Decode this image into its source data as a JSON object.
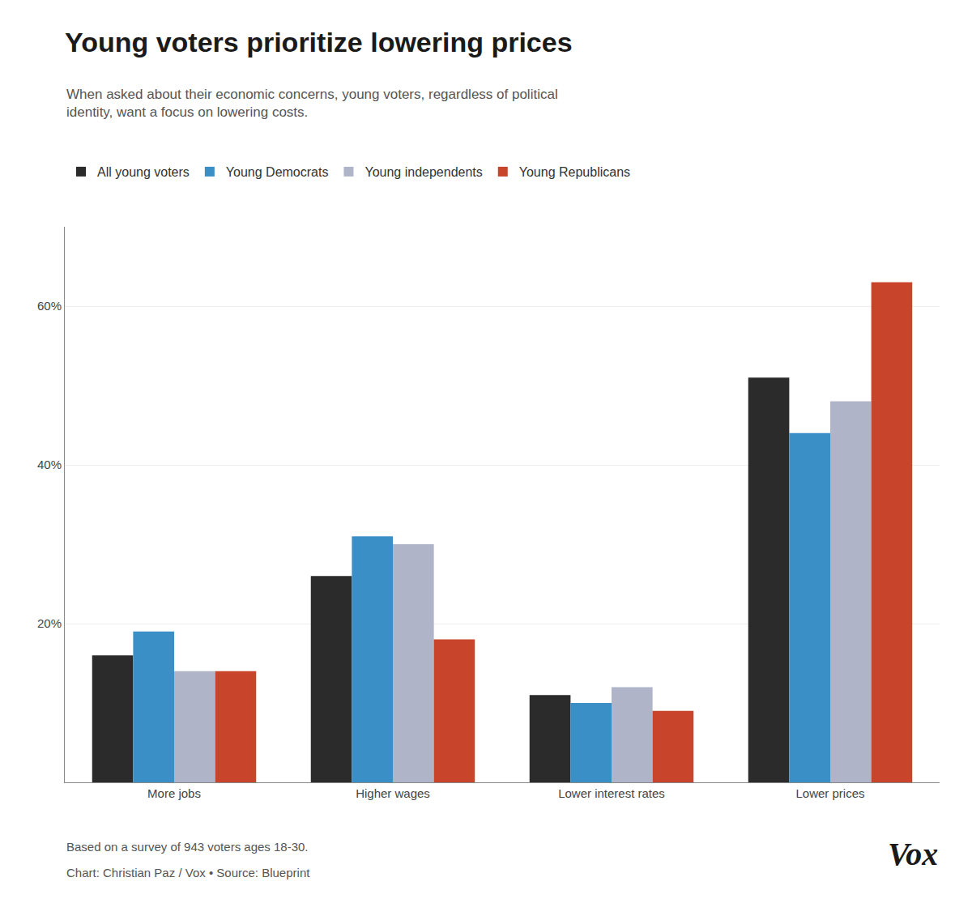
{
  "chart_data": {
    "type": "bar",
    "title": "Young voters prioritize lowering prices",
    "subtitle": "When asked about their economic concerns, young voters, regardless of political\nidentity, want a focus on lowering costs.",
    "categories": [
      "More jobs",
      "Higher wages",
      "Lower interest rates",
      "Lower prices"
    ],
    "series": [
      {
        "name": "All young voters",
        "color": "#2b2b2b",
        "values": [
          16,
          26,
          11,
          51
        ]
      },
      {
        "name": "Young Democrats",
        "color": "#3a8fc7",
        "values": [
          19,
          31,
          10,
          44
        ]
      },
      {
        "name": "Young independents",
        "color": "#b0b4c8",
        "values": [
          14,
          30,
          12,
          48
        ]
      },
      {
        "name": "Young Republicans",
        "color": "#c8442a",
        "values": [
          14,
          18,
          9,
          63
        ]
      }
    ],
    "ylim": [
      0,
      70
    ],
    "yticks": [
      {
        "value": 20,
        "label": "20%"
      },
      {
        "value": 40,
        "label": "40%"
      },
      {
        "value": 60,
        "label": "60%"
      }
    ],
    "grid": true,
    "legend": "top",
    "annotations": [
      "Based on a survey of 943 voters ages 18-30.",
      "Chart: Christian Paz / Vox • Source: Blueprint",
      "Vox"
    ]
  }
}
